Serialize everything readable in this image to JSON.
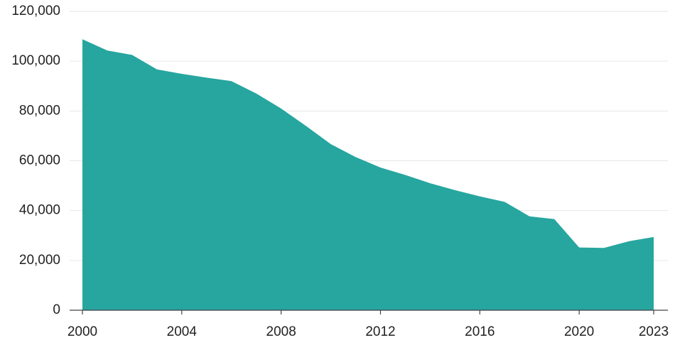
{
  "chart_data": {
    "type": "area",
    "title": "",
    "xlabel": "",
    "ylabel": "",
    "x": [
      2000,
      2001,
      2002,
      2003,
      2004,
      2005,
      2006,
      2007,
      2008,
      2009,
      2010,
      2011,
      2012,
      2013,
      2014,
      2015,
      2016,
      2017,
      2018,
      2019,
      2020,
      2021,
      2022,
      2023
    ],
    "values": [
      108800,
      104300,
      102500,
      96700,
      94900,
      93400,
      92000,
      87000,
      81000,
      74000,
      66700,
      61500,
      57300,
      54300,
      51000,
      48200,
      45700,
      43500,
      37700,
      36600,
      25200,
      25000,
      27700,
      29400
    ],
    "xlim": [
      2000,
      2023
    ],
    "ylim": [
      0,
      120000
    ],
    "x_ticks": [
      "2000",
      "2004",
      "2008",
      "2012",
      "2016",
      "2020",
      "2023"
    ],
    "y_ticks": [
      "0",
      "20,000",
      "40,000",
      "60,000",
      "80,000",
      "100,000",
      "120,000"
    ],
    "grid": true,
    "legend": "none",
    "fill_color": "#26a69f"
  }
}
